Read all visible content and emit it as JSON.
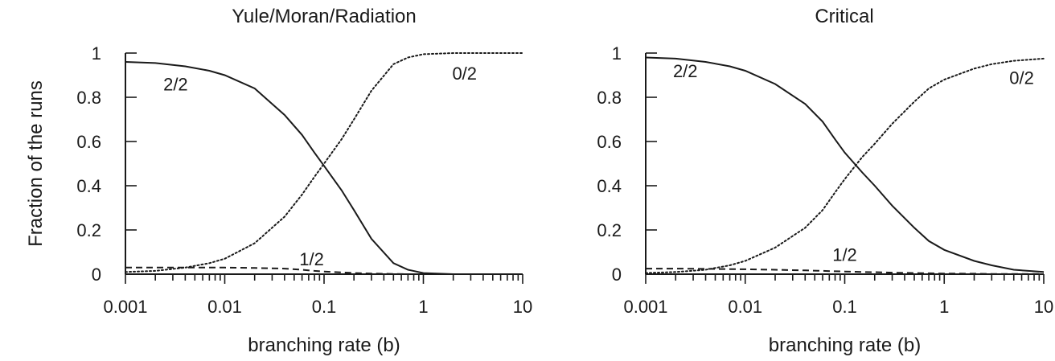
{
  "chart_data": [
    {
      "type": "line",
      "title": "Yule/Moran/Radiation",
      "xlabel": "branching rate (b)",
      "ylabel": "Fraction of the runs",
      "x_scale": "log",
      "xlim": [
        0.001,
        10
      ],
      "ylim": [
        0,
        1
      ],
      "x_tick_labels": [
        "0.001",
        "0.01",
        "0.1",
        "1",
        "10"
      ],
      "y_tick_labels": [
        "0",
        "0.2",
        "0.4",
        "0.6",
        "0.8",
        "1"
      ],
      "x": [
        0.001,
        0.002,
        0.004,
        0.007,
        0.01,
        0.02,
        0.04,
        0.06,
        0.08,
        0.1,
        0.15,
        0.2,
        0.3,
        0.5,
        0.7,
        1,
        2,
        5,
        10
      ],
      "series": [
        {
          "name": "2/2",
          "style": "solid",
          "values": [
            0.96,
            0.955,
            0.94,
            0.92,
            0.9,
            0.84,
            0.72,
            0.63,
            0.55,
            0.49,
            0.38,
            0.29,
            0.16,
            0.05,
            0.02,
            0.005,
            0.0,
            0.0,
            0.0
          ]
        },
        {
          "name": "0/2",
          "style": "dotted",
          "values": [
            0.01,
            0.015,
            0.03,
            0.05,
            0.07,
            0.14,
            0.26,
            0.36,
            0.44,
            0.5,
            0.61,
            0.7,
            0.83,
            0.95,
            0.98,
            0.995,
            1.0,
            1.0,
            1.0
          ]
        },
        {
          "name": "1/2",
          "style": "dashed",
          "values": [
            0.03,
            0.03,
            0.03,
            0.03,
            0.03,
            0.028,
            0.025,
            0.02,
            0.015,
            0.012,
            0.008,
            0.005,
            0.003,
            0.001,
            0.0,
            0.0,
            0.0,
            0.0,
            0.0
          ]
        }
      ]
    },
    {
      "type": "line",
      "title": "Critical",
      "xlabel": "branching rate (b)",
      "ylabel": "",
      "x_scale": "log",
      "xlim": [
        0.001,
        10
      ],
      "ylim": [
        0,
        1
      ],
      "x_tick_labels": [
        "0.001",
        "0.01",
        "0.1",
        "1",
        "10"
      ],
      "y_tick_labels": [
        "0",
        "0.2",
        "0.4",
        "0.6",
        "0.8",
        "1"
      ],
      "x": [
        0.001,
        0.002,
        0.004,
        0.007,
        0.01,
        0.02,
        0.04,
        0.06,
        0.08,
        0.1,
        0.15,
        0.2,
        0.3,
        0.5,
        0.7,
        1,
        2,
        3,
        5,
        10
      ],
      "series": [
        {
          "name": "2/2",
          "style": "solid",
          "values": [
            0.98,
            0.975,
            0.96,
            0.94,
            0.92,
            0.86,
            0.77,
            0.69,
            0.61,
            0.55,
            0.46,
            0.4,
            0.31,
            0.21,
            0.15,
            0.11,
            0.06,
            0.04,
            0.02,
            0.01
          ]
        },
        {
          "name": "0/2",
          "style": "dotted",
          "values": [
            0.005,
            0.01,
            0.02,
            0.04,
            0.06,
            0.12,
            0.21,
            0.29,
            0.37,
            0.43,
            0.53,
            0.59,
            0.68,
            0.78,
            0.84,
            0.88,
            0.93,
            0.95,
            0.965,
            0.975
          ]
        },
        {
          "name": "1/2",
          "style": "dashed",
          "values": [
            0.025,
            0.025,
            0.024,
            0.023,
            0.022,
            0.02,
            0.017,
            0.015,
            0.013,
            0.012,
            0.01,
            0.009,
            0.007,
            0.005,
            0.004,
            0.003,
            0.002,
            0.001,
            0.001,
            0.001
          ]
        }
      ]
    }
  ]
}
